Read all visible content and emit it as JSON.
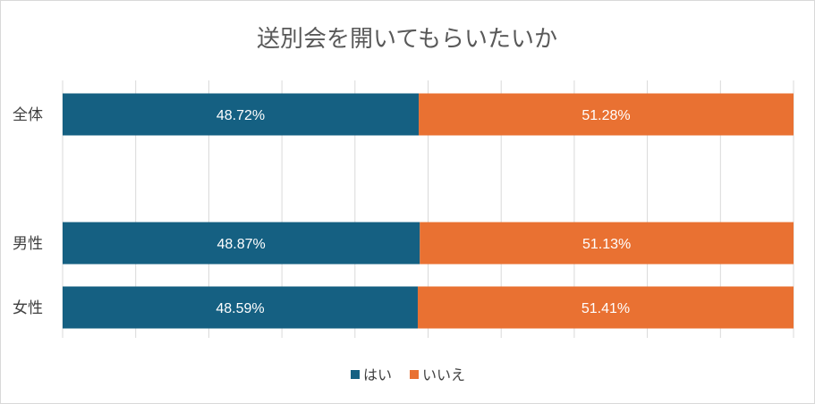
{
  "chart_data": {
    "type": "bar",
    "orientation": "horizontal",
    "stacked": "percent",
    "title": "送別会を開いてもらいたいか",
    "categories": [
      "全体",
      "",
      "男性",
      "女性"
    ],
    "series": [
      {
        "name": "はい",
        "color": "#156082",
        "values": [
          48.72,
          null,
          48.87,
          48.59
        ],
        "labels": [
          "48.72%",
          "",
          "48.87%",
          "48.59%"
        ]
      },
      {
        "name": "いいえ",
        "color": "#E97132",
        "values": [
          51.28,
          null,
          51.13,
          51.41
        ],
        "labels": [
          "51.28%",
          "",
          "51.13%",
          "51.41%"
        ]
      }
    ],
    "xlim": [
      0,
      100
    ],
    "grid": true,
    "legend": "bottom"
  }
}
